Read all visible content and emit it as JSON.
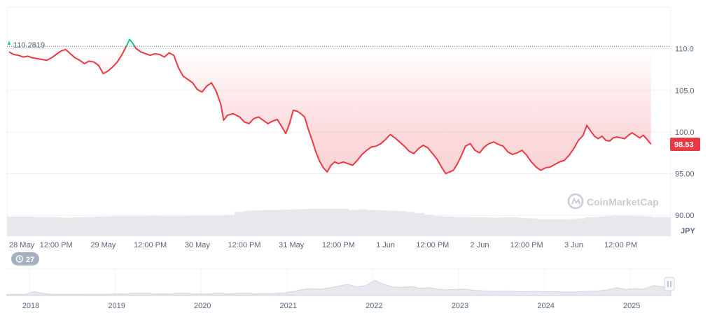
{
  "chart_data": {
    "type": "line",
    "currency": "JPY",
    "reference_value_label": "110.2819",
    "reference_value": 110.2819,
    "current_price": 98.53,
    "current_price_label": "98.53",
    "ylim": [
      87.5,
      115.0
    ],
    "y_ticks": [
      "110.0",
      "105.0",
      "100.0",
      "95.00",
      "90.00"
    ],
    "y_tick_values": [
      110.0,
      105.0,
      100.0,
      95.0,
      90.0
    ],
    "x_ticks": [
      "28 May",
      "12:00 PM",
      "29 May",
      "12:00 PM",
      "30 May",
      "12:00 PM",
      "31 May",
      "12:00 PM",
      "1 Jun",
      "12:00 PM",
      "2 Jun",
      "12:00 PM",
      "3 Jun",
      "12:00 PM"
    ],
    "x_tick_positions": [
      0,
      0.5,
      1,
      1.5,
      2,
      2.5,
      3,
      3.5,
      4,
      4.5,
      5,
      5.5,
      6,
      6.5
    ],
    "x_range_days": [
      0,
      7.0
    ],
    "series": [
      {
        "points": [
          [
            0.0,
            109.6
          ],
          [
            0.05,
            109.3
          ],
          [
            0.1,
            109.2
          ],
          [
            0.15,
            109.0
          ],
          [
            0.2,
            109.1
          ],
          [
            0.25,
            108.9
          ],
          [
            0.3,
            108.8
          ],
          [
            0.35,
            108.7
          ],
          [
            0.4,
            108.6
          ],
          [
            0.45,
            108.9
          ],
          [
            0.5,
            109.3
          ],
          [
            0.55,
            109.7
          ],
          [
            0.6,
            109.9
          ],
          [
            0.65,
            109.4
          ],
          [
            0.7,
            108.9
          ],
          [
            0.75,
            108.6
          ],
          [
            0.8,
            108.2
          ],
          [
            0.85,
            108.5
          ],
          [
            0.9,
            108.4
          ],
          [
            0.95,
            108.0
          ],
          [
            1.0,
            107.0
          ],
          [
            1.05,
            107.3
          ],
          [
            1.1,
            107.8
          ],
          [
            1.15,
            108.4
          ],
          [
            1.2,
            109.3
          ],
          [
            1.25,
            110.4
          ],
          [
            1.28,
            111.1
          ],
          [
            1.31,
            110.7
          ],
          [
            1.35,
            110.0
          ],
          [
            1.4,
            109.6
          ],
          [
            1.45,
            109.4
          ],
          [
            1.5,
            109.2
          ],
          [
            1.55,
            109.4
          ],
          [
            1.6,
            109.3
          ],
          [
            1.65,
            109.0
          ],
          [
            1.7,
            109.5
          ],
          [
            1.75,
            109.2
          ],
          [
            1.8,
            107.7
          ],
          [
            1.85,
            106.7
          ],
          [
            1.9,
            106.3
          ],
          [
            1.95,
            105.9
          ],
          [
            2.0,
            105.1
          ],
          [
            2.05,
            104.8
          ],
          [
            2.1,
            105.5
          ],
          [
            2.15,
            105.9
          ],
          [
            2.2,
            104.9
          ],
          [
            2.25,
            103.3
          ],
          [
            2.28,
            101.4
          ],
          [
            2.32,
            102.0
          ],
          [
            2.38,
            102.2
          ],
          [
            2.45,
            101.8
          ],
          [
            2.5,
            101.2
          ],
          [
            2.55,
            101.0
          ],
          [
            2.6,
            101.6
          ],
          [
            2.65,
            101.8
          ],
          [
            2.7,
            101.4
          ],
          [
            2.75,
            101.0
          ],
          [
            2.8,
            101.3
          ],
          [
            2.85,
            101.5
          ],
          [
            2.9,
            100.6
          ],
          [
            2.94,
            99.8
          ],
          [
            2.98,
            101.0
          ],
          [
            3.02,
            102.6
          ],
          [
            3.06,
            102.5
          ],
          [
            3.1,
            102.2
          ],
          [
            3.14,
            101.8
          ],
          [
            3.18,
            100.3
          ],
          [
            3.22,
            99.0
          ],
          [
            3.26,
            97.6
          ],
          [
            3.3,
            96.5
          ],
          [
            3.34,
            95.7
          ],
          [
            3.38,
            95.2
          ],
          [
            3.42,
            96.0
          ],
          [
            3.46,
            96.4
          ],
          [
            3.5,
            96.2
          ],
          [
            3.55,
            96.4
          ],
          [
            3.6,
            96.2
          ],
          [
            3.65,
            96.0
          ],
          [
            3.7,
            96.6
          ],
          [
            3.75,
            97.3
          ],
          [
            3.8,
            97.8
          ],
          [
            3.85,
            98.2
          ],
          [
            3.9,
            98.3
          ],
          [
            3.95,
            98.6
          ],
          [
            4.0,
            99.1
          ],
          [
            4.05,
            99.7
          ],
          [
            4.1,
            99.3
          ],
          [
            4.15,
            98.8
          ],
          [
            4.2,
            98.3
          ],
          [
            4.25,
            97.7
          ],
          [
            4.3,
            97.4
          ],
          [
            4.35,
            98.0
          ],
          [
            4.4,
            98.4
          ],
          [
            4.45,
            98.1
          ],
          [
            4.5,
            97.4
          ],
          [
            4.55,
            96.7
          ],
          [
            4.6,
            95.7
          ],
          [
            4.64,
            95.0
          ],
          [
            4.68,
            95.2
          ],
          [
            4.72,
            95.4
          ],
          [
            4.76,
            96.1
          ],
          [
            4.8,
            97.0
          ],
          [
            4.85,
            98.3
          ],
          [
            4.9,
            98.6
          ],
          [
            4.95,
            97.8
          ],
          [
            5.0,
            97.5
          ],
          [
            5.05,
            98.2
          ],
          [
            5.1,
            98.6
          ],
          [
            5.15,
            98.8
          ],
          [
            5.2,
            98.5
          ],
          [
            5.25,
            98.3
          ],
          [
            5.3,
            97.6
          ],
          [
            5.35,
            97.3
          ],
          [
            5.4,
            97.5
          ],
          [
            5.45,
            97.8
          ],
          [
            5.5,
            97.2
          ],
          [
            5.55,
            96.4
          ],
          [
            5.6,
            95.8
          ],
          [
            5.65,
            95.4
          ],
          [
            5.7,
            95.7
          ],
          [
            5.75,
            95.8
          ],
          [
            5.8,
            96.1
          ],
          [
            5.85,
            96.4
          ],
          [
            5.9,
            96.6
          ],
          [
            5.95,
            97.2
          ],
          [
            6.0,
            98.0
          ],
          [
            6.05,
            99.0
          ],
          [
            6.1,
            99.6
          ],
          [
            6.14,
            100.8
          ],
          [
            6.18,
            100.1
          ],
          [
            6.22,
            99.5
          ],
          [
            6.26,
            99.2
          ],
          [
            6.3,
            99.5
          ],
          [
            6.34,
            99.0
          ],
          [
            6.38,
            98.9
          ],
          [
            6.42,
            99.3
          ],
          [
            6.46,
            99.4
          ],
          [
            6.5,
            99.3
          ],
          [
            6.54,
            99.2
          ],
          [
            6.58,
            99.6
          ],
          [
            6.62,
            99.9
          ],
          [
            6.66,
            99.6
          ],
          [
            6.7,
            99.3
          ],
          [
            6.74,
            99.6
          ],
          [
            6.78,
            99.1
          ],
          [
            6.82,
            98.53
          ]
        ]
      }
    ],
    "volume_series": [
      0.58,
      0.58,
      0.58,
      0.57,
      0.57,
      0.56,
      0.55,
      0.56,
      0.57,
      0.58,
      0.59,
      0.6,
      0.6,
      0.6,
      0.6,
      0.61,
      0.6,
      0.6,
      0.6,
      0.61,
      0.62,
      0.62,
      0.62,
      0.63,
      0.72,
      0.76,
      0.77,
      0.78,
      0.78,
      0.79,
      0.8,
      0.81,
      0.82,
      0.82,
      0.82,
      0.82,
      0.78,
      0.8,
      0.78,
      0.77,
      0.76,
      0.75,
      0.72,
      0.69,
      0.64,
      0.6,
      0.58,
      0.57,
      0.57,
      0.56,
      0.56,
      0.55,
      0.56,
      0.56,
      0.54,
      0.53,
      0.5,
      0.5,
      0.5,
      0.51,
      0.53,
      0.56,
      0.58,
      0.6,
      0.62,
      0.61,
      0.6,
      0.59,
      0.57,
      0.57
    ],
    "navigator": {
      "x_ticks": [
        "2018",
        "2019",
        "2020",
        "2021",
        "2022",
        "2023",
        "2024",
        "2025"
      ],
      "values": [
        0.05,
        0.05,
        0.05,
        0.18,
        0.1,
        0.06,
        0.05,
        0.05,
        0.05,
        0.06,
        0.06,
        0.06,
        0.07,
        0.07,
        0.08,
        0.08,
        0.08,
        0.07,
        0.07,
        0.08,
        0.08,
        0.07,
        0.07,
        0.08,
        0.08,
        0.09,
        0.08,
        0.08,
        0.09,
        0.09,
        0.1,
        0.12,
        0.2,
        0.28,
        0.32,
        0.3,
        0.36,
        0.44,
        0.52,
        0.4,
        0.46,
        0.7,
        0.52,
        0.4,
        0.38,
        0.42,
        0.34,
        0.36,
        0.3,
        0.26,
        0.28,
        0.3,
        0.24,
        0.22,
        0.2,
        0.2,
        0.22,
        0.18,
        0.18,
        0.2,
        0.17,
        0.18,
        0.16,
        0.16,
        0.18,
        0.2,
        0.22,
        0.26,
        0.36,
        0.28,
        0.32,
        0.3,
        0.46,
        0.42,
        0.36
      ]
    },
    "zoom_badge_label": "27",
    "colors": {
      "line_down": "#ea3943",
      "line_up": "#16c784",
      "fill_top": "#ea3943",
      "price_tag_bg": "#ea3943",
      "grid": "#eff2f5",
      "volume": "#e6e8ec",
      "badge_bg": "#a6b0c3",
      "navigator_fill": "#e6e8ec"
    },
    "watermark": "CoinMarketCap",
    "grid": true
  }
}
